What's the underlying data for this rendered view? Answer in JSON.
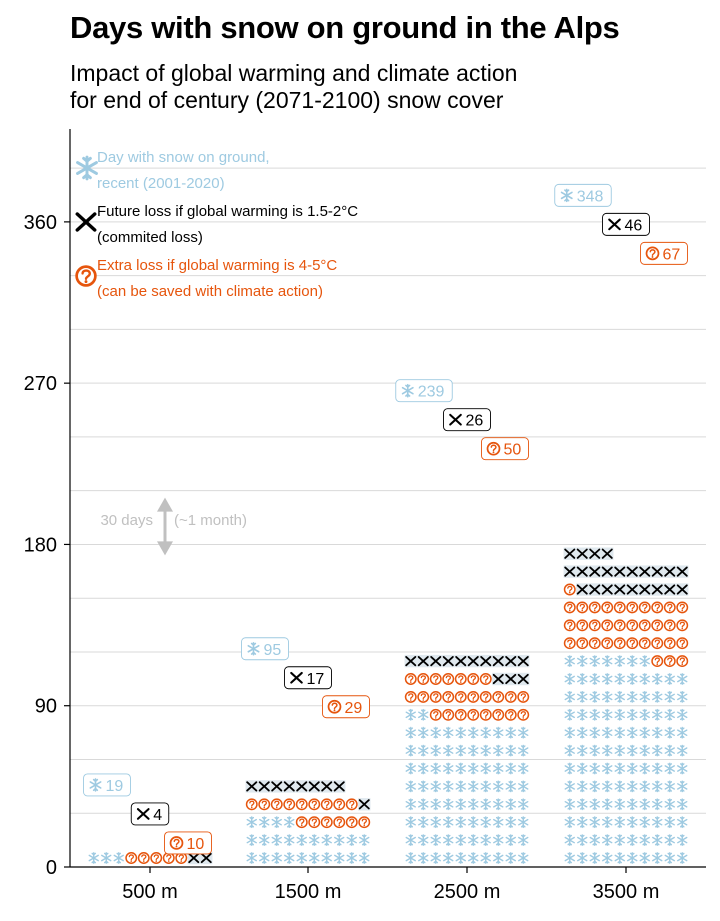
{
  "title": "Days with snow on ground in the Alps",
  "subtitle_lines": [
    "Impact of global warming and climate action",
    "for end of century (2071-2100) snow cover"
  ],
  "legend": {
    "recent_line1": "Day with snow on ground,",
    "recent_line2": "recent (2001-2020)",
    "committed_line1": "Future loss if global warming is 1.5-2°C",
    "committed_line2": "(commited loss)",
    "extra_line1": "Extra loss if global warming is 4-5°C",
    "extra_line2": "(can be saved with climate action)"
  },
  "annotation": {
    "text_left": "30 days",
    "text_right": "(~1 month)",
    "days": 30
  },
  "colors": {
    "snow": "#9ecae1",
    "committed": "#000000",
    "extra": "#e6550d",
    "grid": "#d9d9d9",
    "annotation": "#c0c0c0"
  },
  "icons": {
    "snow": "snowflake-icon",
    "committed": "cross-icon",
    "extra": "question-circle-icon"
  },
  "chart_data": {
    "type": "bar",
    "subtype": "stacked unit chart (waffle columns, 1 symbol per 2 days)",
    "categories": [
      "500 m",
      "1500 m",
      "2500 m",
      "3500 m"
    ],
    "yticks": [
      0,
      90,
      180,
      270,
      360
    ],
    "ylim": [
      0,
      410
    ],
    "grid": true,
    "series": [
      {
        "name": "Day with snow on ground, recent (2001-2020)",
        "values": [
          19,
          95,
          239,
          348
        ]
      },
      {
        "name": "Future loss if global warming is 1.5-2°C (commited loss)",
        "values": [
          4,
          17,
          26,
          46
        ]
      },
      {
        "name": "Extra loss if global warming is 4-5°C (can be saved with climate action)",
        "values": [
          10,
          29,
          50,
          67
        ]
      }
    ],
    "labels": {
      "recent": [
        "19",
        "95",
        "239",
        "348"
      ],
      "committed": [
        "4",
        "17",
        "26",
        "46"
      ],
      "extra": [
        "10",
        "29",
        "50",
        "67"
      ]
    }
  }
}
